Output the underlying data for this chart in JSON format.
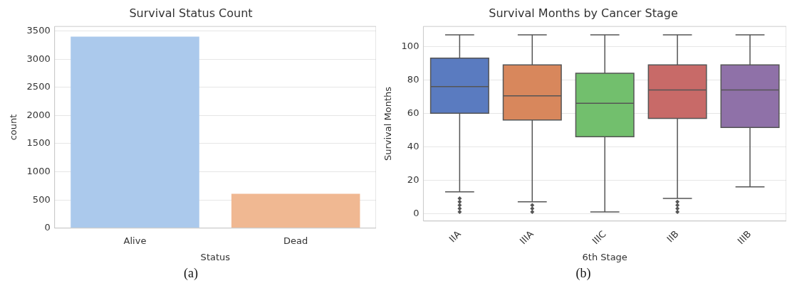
{
  "chart_data": [
    {
      "type": "bar",
      "title": "Survival Status Count",
      "xlabel": "Status",
      "ylabel": "count",
      "categories": [
        "Alive",
        "Dead"
      ],
      "values": [
        3400,
        610
      ],
      "colors": [
        "#abc9ec",
        "#f0b892"
      ],
      "ylim": [
        0,
        3580
      ],
      "yticks": [
        0,
        500,
        1000,
        1500,
        2000,
        2500,
        3000,
        3500
      ],
      "grid": "y",
      "annotations": [
        "(a)"
      ]
    },
    {
      "type": "box",
      "title": "Survival Months by Cancer Stage",
      "xlabel": "6th Stage",
      "ylabel": "Survival Months",
      "categories": [
        "IIA",
        "IIIA",
        "IIIC",
        "IIB",
        "IIIB"
      ],
      "colors": [
        "#5a7bc0",
        "#d8875c",
        "#72bf6d",
        "#c86a68",
        "#8f71a8"
      ],
      "boxes": [
        {
          "low": 13,
          "q1": 60,
          "median": 76,
          "q3": 93,
          "high": 107,
          "outliers": [
            1,
            3,
            5,
            7,
            9
          ]
        },
        {
          "low": 7,
          "q1": 56,
          "median": 70.5,
          "q3": 89,
          "high": 107,
          "outliers": [
            1,
            3,
            5
          ]
        },
        {
          "low": 1,
          "q1": 46,
          "median": 66,
          "q3": 84,
          "high": 107
        },
        {
          "low": 9,
          "q1": 57,
          "median": 74,
          "q3": 89,
          "high": 107,
          "outliers": [
            1,
            3,
            5,
            7
          ]
        },
        {
          "low": 16,
          "q1": 51.5,
          "median": 74,
          "q3": 89,
          "high": 107
        }
      ],
      "ylim": [
        -4.5,
        112
      ],
      "yticks": [
        0,
        20,
        40,
        60,
        80,
        100
      ],
      "grid": "y",
      "annotations": [
        "(b)"
      ]
    }
  ]
}
